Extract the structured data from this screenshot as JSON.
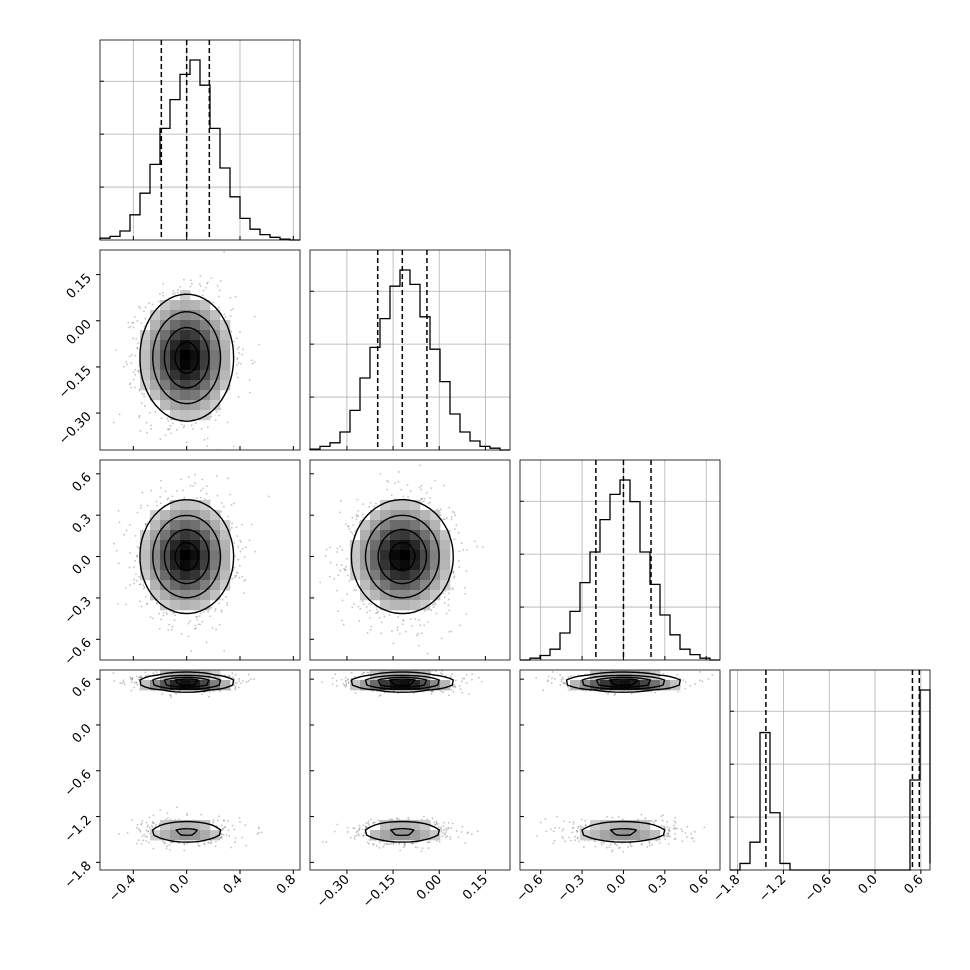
{
  "chart_data": {
    "type": "corner",
    "grid": true,
    "quantile_lines": [
      0.16,
      0.5,
      0.84
    ],
    "axes": [
      {
        "range": [
          -0.65,
          0.85
        ],
        "ticks": [
          -0.4,
          0.0,
          0.4,
          0.8
        ],
        "tick_labels": [
          "−0.4",
          "0.0",
          "0.4",
          "0.8"
        ]
      },
      {
        "range": [
          -0.42,
          0.23
        ],
        "ticks": [
          -0.3,
          -0.15,
          0.0,
          0.15
        ],
        "tick_labels": [
          "−0.30",
          "−0.15",
          "0.00",
          "0.15"
        ]
      },
      {
        "range": [
          -0.75,
          0.7
        ],
        "ticks": [
          -0.6,
          -0.3,
          0.0,
          0.3,
          0.6
        ],
        "tick_labels": [
          "−0.6",
          "−0.3",
          "0.0",
          "0.3",
          "0.6"
        ]
      },
      {
        "range": [
          -1.9,
          0.72
        ],
        "ticks": [
          -1.8,
          -1.2,
          -0.6,
          0.0,
          0.6
        ],
        "tick_labels": [
          "−1.8",
          "−1.2",
          "−0.6",
          "0.0",
          "0.6"
        ]
      }
    ],
    "histograms": [
      {
        "bin_edges": [
          -0.65,
          -0.575,
          -0.5,
          -0.425,
          -0.35,
          -0.275,
          -0.2,
          -0.125,
          -0.05,
          0.025,
          0.1,
          0.175,
          0.25,
          0.325,
          0.4,
          0.475,
          0.55,
          0.625,
          0.7,
          0.775,
          0.85
        ],
        "counts": [
          0.01,
          0.02,
          0.05,
          0.14,
          0.26,
          0.42,
          0.62,
          0.78,
          0.92,
          1.0,
          0.86,
          0.62,
          0.4,
          0.24,
          0.12,
          0.06,
          0.03,
          0.015,
          0.005,
          0.0
        ],
        "quantiles": [
          -0.19,
          0.0,
          0.17
        ]
      },
      {
        "bin_edges": [
          -0.42,
          -0.3875,
          -0.355,
          -0.3225,
          -0.29,
          -0.2575,
          -0.225,
          -0.1925,
          -0.16,
          -0.1275,
          -0.095,
          -0.0625,
          -0.03,
          0.0025,
          0.035,
          0.0675,
          0.1,
          0.1325,
          0.165,
          0.1975,
          0.23
        ],
        "counts": [
          0.005,
          0.02,
          0.04,
          0.1,
          0.22,
          0.4,
          0.57,
          0.73,
          0.91,
          1.0,
          0.92,
          0.74,
          0.56,
          0.38,
          0.2,
          0.1,
          0.05,
          0.02,
          0.01,
          0.0
        ],
        "quantiles": [
          -0.2,
          -0.12,
          -0.04
        ]
      },
      {
        "bin_edges": [
          -0.75,
          -0.6775,
          -0.605,
          -0.5325,
          -0.46,
          -0.3875,
          -0.315,
          -0.2425,
          -0.17,
          -0.0975,
          -0.025,
          0.0475,
          0.12,
          0.1925,
          0.265,
          0.3375,
          0.41,
          0.4825,
          0.555,
          0.6275,
          0.7
        ],
        "counts": [
          0.0,
          0.01,
          0.025,
          0.06,
          0.15,
          0.27,
          0.43,
          0.6,
          0.78,
          0.92,
          1.0,
          0.88,
          0.6,
          0.42,
          0.25,
          0.14,
          0.06,
          0.03,
          0.01,
          0.0
        ],
        "quantiles": [
          -0.2,
          0.0,
          0.2
        ]
      },
      {
        "bin_edges": [
          -1.9,
          -1.769,
          -1.638,
          -1.507,
          -1.376,
          -1.245,
          -1.114,
          -0.983,
          -0.852,
          -0.721,
          -0.59,
          -0.459,
          -0.328,
          -0.197,
          -0.066,
          0.065,
          0.196,
          0.327,
          0.458,
          0.589,
          0.72
        ],
        "counts": [
          0.0,
          0.04,
          0.17,
          0.84,
          0.35,
          0.04,
          0.0,
          0.0,
          0.0,
          0.0,
          0.0,
          0.0,
          0.0,
          0.0,
          0.0,
          0.0,
          0.0,
          0.0,
          0.55,
          1.1,
          0.04
        ],
        "quantiles": [
          -1.43,
          0.49,
          0.58
        ]
      }
    ],
    "pair_blobs": [
      {
        "col": 0,
        "row": 1,
        "blobs": [
          {
            "mx": 0.0,
            "my": -0.12,
            "sx": 0.17,
            "sy": 0.1,
            "w": 1.0
          }
        ]
      },
      {
        "col": 0,
        "row": 2,
        "blobs": [
          {
            "mx": 0.0,
            "my": 0.0,
            "sx": 0.17,
            "sy": 0.2,
            "w": 1.0
          }
        ]
      },
      {
        "col": 1,
        "row": 2,
        "blobs": [
          {
            "mx": -0.12,
            "my": 0.0,
            "sx": 0.08,
            "sy": 0.2,
            "w": 1.0
          }
        ]
      },
      {
        "col": 0,
        "row": 3,
        "blobs": [
          {
            "mx": 0.0,
            "my": 0.56,
            "sx": 0.17,
            "sy": 0.055,
            "w": 0.66
          },
          {
            "mx": 0.0,
            "my": -1.4,
            "sx": 0.17,
            "sy": 0.085,
            "w": 0.34
          }
        ]
      },
      {
        "col": 1,
        "row": 3,
        "blobs": [
          {
            "mx": -0.12,
            "my": 0.56,
            "sx": 0.08,
            "sy": 0.055,
            "w": 0.66
          },
          {
            "mx": -0.12,
            "my": -1.4,
            "sx": 0.08,
            "sy": 0.085,
            "w": 0.34
          }
        ]
      },
      {
        "col": 2,
        "row": 3,
        "blobs": [
          {
            "mx": 0.0,
            "my": 0.56,
            "sx": 0.2,
            "sy": 0.055,
            "w": 0.66
          },
          {
            "mx": 0.0,
            "my": -1.4,
            "sx": 0.2,
            "sy": 0.085,
            "w": 0.34
          }
        ]
      }
    ]
  }
}
